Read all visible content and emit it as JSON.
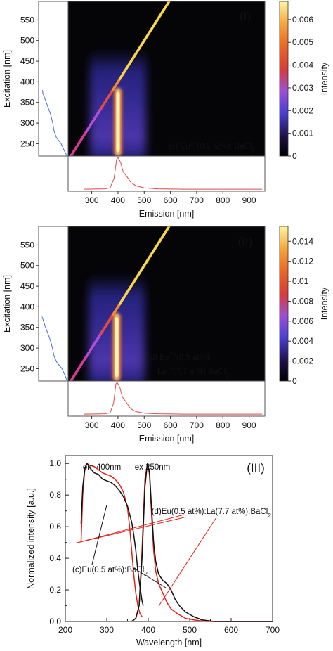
{
  "chart_data": [
    {
      "type": "heatmap",
      "panel_label": "(I)",
      "ylabel": "Excitation [nm]",
      "xlabel": "Emission [nm]",
      "colorbar_label": "Intensity",
      "sample_label": {
        "pre": "(c) Eu",
        "sup": "2+",
        "mid": "(0.5 at%): BaCl",
        "sub": "2"
      },
      "y_ticks": [
        250,
        300,
        350,
        400,
        450,
        500,
        550
      ],
      "x_ticks": [
        300,
        400,
        500,
        600,
        700,
        800,
        900
      ],
      "colorbar_ticks": [
        "0",
        "0.001",
        "0.002",
        "0.003",
        "0.004",
        "0.005",
        "0.006"
      ],
      "xlim": [
        210,
        960
      ],
      "ylim": [
        220,
        595
      ],
      "cbar_max": 0.0068,
      "emission_peak_nm": 400,
      "excitation_band_nm": [
        220,
        385
      ],
      "excitation_profile": [
        [
          220,
          0.04
        ],
        [
          235,
          0.15
        ],
        [
          250,
          0.25
        ],
        [
          265,
          0.42
        ],
        [
          280,
          0.5
        ],
        [
          300,
          0.55
        ],
        [
          320,
          0.62
        ],
        [
          335,
          0.7
        ],
        [
          350,
          0.78
        ],
        [
          365,
          0.86
        ],
        [
          372,
          0.9
        ],
        [
          380,
          0.92
        ]
      ],
      "emission_profile": [
        [
          270,
          0.02
        ],
        [
          350,
          0.03
        ],
        [
          370,
          0.06
        ],
        [
          385,
          0.35
        ],
        [
          395,
          0.95
        ],
        [
          400,
          1.0
        ],
        [
          410,
          0.85
        ],
        [
          420,
          0.55
        ],
        [
          435,
          0.4
        ],
        [
          450,
          0.22
        ],
        [
          470,
          0.12
        ],
        [
          500,
          0.06
        ],
        [
          550,
          0.03
        ],
        [
          650,
          0.02
        ],
        [
          950,
          0.02
        ]
      ]
    },
    {
      "type": "heatmap",
      "panel_label": "(II)",
      "ylabel": "Excitation [nm]",
      "xlabel": "Emission [nm]",
      "colorbar_label": "Intensity",
      "sample_label": {
        "pre": "(d) Eu",
        "sup": "2+",
        "mid": "(0.5 at%):",
        "line2_pre": "La",
        "line2_sup": "3+",
        "line2_mid": "(7.7 at%):BaCl",
        "line2_sub": "2"
      },
      "y_ticks": [
        250,
        300,
        350,
        400,
        450,
        500,
        550
      ],
      "x_ticks": [
        300,
        400,
        500,
        600,
        700,
        800,
        900
      ],
      "colorbar_ticks": [
        "0",
        "0.002",
        "0.004",
        "0.006",
        "0.008",
        "0.01",
        "0.012",
        "0.014"
      ],
      "xlim": [
        210,
        960
      ],
      "ylim": [
        220,
        595
      ],
      "cbar_max": 0.0155,
      "emission_peak_nm": 395,
      "excitation_band_nm": [
        220,
        385
      ],
      "excitation_profile": [
        [
          220,
          0.03
        ],
        [
          235,
          0.12
        ],
        [
          250,
          0.22
        ],
        [
          265,
          0.4
        ],
        [
          280,
          0.5
        ],
        [
          300,
          0.56
        ],
        [
          320,
          0.64
        ],
        [
          340,
          0.75
        ],
        [
          355,
          0.83
        ],
        [
          370,
          0.9
        ],
        [
          376,
          0.93
        ]
      ],
      "emission_profile": [
        [
          270,
          0.02
        ],
        [
          350,
          0.03
        ],
        [
          370,
          0.06
        ],
        [
          383,
          0.35
        ],
        [
          392,
          0.95
        ],
        [
          397,
          1.0
        ],
        [
          407,
          0.85
        ],
        [
          417,
          0.55
        ],
        [
          432,
          0.38
        ],
        [
          447,
          0.2
        ],
        [
          467,
          0.1
        ],
        [
          500,
          0.05
        ],
        [
          550,
          0.03
        ],
        [
          650,
          0.02
        ],
        [
          950,
          0.02
        ]
      ]
    },
    {
      "type": "line",
      "panel_label": "(III)",
      "xlabel": "Wavelength [nm]",
      "ylabel": "Normalized intensity [a.u.]",
      "xlim": [
        200,
        700
      ],
      "ylim": [
        0,
        1.05
      ],
      "x_ticks": [
        200,
        300,
        400,
        500,
        600,
        700
      ],
      "y_ticks": [
        "0.0",
        "0.2",
        "0.4",
        "0.6",
        "0.8",
        "1.0"
      ],
      "annotations": [
        "em 400nm",
        "ex 250nm"
      ],
      "series": [
        {
          "name": "(c)Eu(0.5 at%):BaCl2",
          "color": "#111111",
          "label_parts": {
            "pre": "(c)Eu(0.5 at%):BaCl",
            "sub": "2"
          },
          "excitation": [
            [
              238,
              0.62
            ],
            [
              242,
              0.85
            ],
            [
              247,
              0.97
            ],
            [
              252,
              1.0
            ],
            [
              260,
              0.97
            ],
            [
              270,
              0.94
            ],
            [
              280,
              0.93
            ],
            [
              290,
              0.9
            ],
            [
              300,
              0.89
            ],
            [
              310,
              0.88
            ],
            [
              320,
              0.86
            ],
            [
              330,
              0.83
            ],
            [
              340,
              0.79
            ],
            [
              350,
              0.73
            ],
            [
              360,
              0.63
            ],
            [
              365,
              0.55
            ],
            [
              370,
              0.45
            ],
            [
              375,
              0.32
            ],
            [
              380,
              0.22
            ],
            [
              385,
              0.13
            ],
            [
              388,
              0.1
            ]
          ],
          "emission": [
            [
              360,
              0.0
            ],
            [
              370,
              0.02
            ],
            [
              378,
              0.1
            ],
            [
              385,
              0.4
            ],
            [
              392,
              0.85
            ],
            [
              398,
              1.0
            ],
            [
              403,
              0.95
            ],
            [
              408,
              0.72
            ],
            [
              413,
              0.5
            ],
            [
              418,
              0.38
            ],
            [
              425,
              0.3
            ],
            [
              435,
              0.26
            ],
            [
              445,
              0.24
            ],
            [
              455,
              0.2
            ],
            [
              465,
              0.14
            ],
            [
              475,
              0.1
            ],
            [
              490,
              0.06
            ],
            [
              510,
              0.03
            ],
            [
              530,
              0.01
            ],
            [
              560,
              0.0
            ],
            [
              700,
              0.0
            ]
          ]
        },
        {
          "name": "(d)Eu(0.5 at%):La(7.7 at%):BaCl2",
          "color": "#e0201b",
          "label_parts": {
            "pre": "(d)Eu(0.5 at%):La(7.7 at%):BaCl",
            "sub": "2"
          },
          "excitation": [
            [
              238,
              0.5
            ],
            [
              242,
              0.8
            ],
            [
              247,
              0.96
            ],
            [
              252,
              1.0
            ],
            [
              258,
              0.99
            ],
            [
              270,
              0.98
            ],
            [
              280,
              0.96
            ],
            [
              290,
              0.94
            ],
            [
              300,
              0.93
            ],
            [
              310,
              0.92
            ],
            [
              320,
              0.9
            ],
            [
              330,
              0.87
            ],
            [
              340,
              0.82
            ],
            [
              350,
              0.72
            ],
            [
              355,
              0.6
            ],
            [
              360,
              0.45
            ],
            [
              365,
              0.3
            ],
            [
              370,
              0.18
            ],
            [
              375,
              0.1
            ],
            [
              380,
              0.05
            ],
            [
              385,
              0.03
            ]
          ],
          "emission": [
            [
              360,
              0.0
            ],
            [
              370,
              0.02
            ],
            [
              378,
              0.1
            ],
            [
              385,
              0.45
            ],
            [
              392,
              0.9
            ],
            [
              398,
              1.0
            ],
            [
              403,
              0.93
            ],
            [
              408,
              0.68
            ],
            [
              413,
              0.45
            ],
            [
              418,
              0.32
            ],
            [
              425,
              0.24
            ],
            [
              435,
              0.18
            ],
            [
              445,
              0.12
            ],
            [
              455,
              0.08
            ],
            [
              470,
              0.05
            ],
            [
              490,
              0.02
            ],
            [
              510,
              0.01
            ],
            [
              540,
              0.0
            ],
            [
              700,
              0.0
            ]
          ]
        }
      ]
    }
  ]
}
